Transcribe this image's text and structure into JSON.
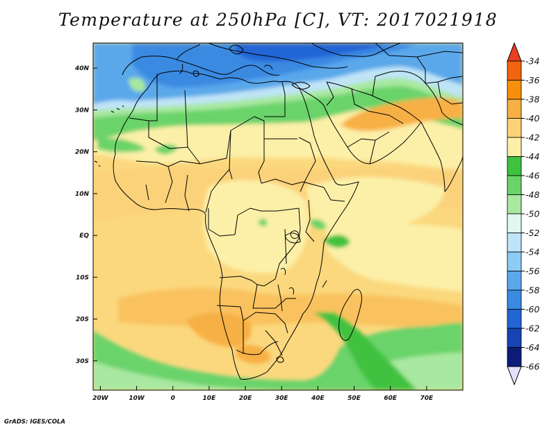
{
  "title": "Temperature at 250hPa [C], VT: 2017021918",
  "credit": "GrADS: IGES/COLA",
  "map": {
    "lon_range": [
      -22,
      80
    ],
    "lat_range": [
      -37,
      46
    ],
    "lon_ticks": [
      {
        "lon": -20,
        "label": "20W"
      },
      {
        "lon": -10,
        "label": "10W"
      },
      {
        "lon": 0,
        "label": "0"
      },
      {
        "lon": 10,
        "label": "10E"
      },
      {
        "lon": 20,
        "label": "20E"
      },
      {
        "lon": 30,
        "label": "30E"
      },
      {
        "lon": 40,
        "label": "40E"
      },
      {
        "lon": 50,
        "label": "50E"
      },
      {
        "lon": 60,
        "label": "60E"
      },
      {
        "lon": 70,
        "label": "70E"
      }
    ],
    "lat_ticks": [
      {
        "lat": 40,
        "label": "40N"
      },
      {
        "lat": 30,
        "label": "30N"
      },
      {
        "lat": 20,
        "label": "20N"
      },
      {
        "lat": 10,
        "label": "10N"
      },
      {
        "lat": 0,
        "label": "EQ"
      },
      {
        "lat": -10,
        "label": "10S"
      },
      {
        "lat": -20,
        "label": "20S"
      },
      {
        "lat": -30,
        "label": "30S"
      }
    ]
  },
  "colorbar": {
    "labels": [
      "-34",
      "-36",
      "-38",
      "-40",
      "-42",
      "-44",
      "-46",
      "-48",
      "-50",
      "-52",
      "-54",
      "-56",
      "-58",
      "-60",
      "-62",
      "-64",
      "-66"
    ],
    "top_arrow_color": "#e8401e",
    "bottom_arrow_color": "#e4e0f8",
    "colors": [
      "#f26310",
      "#f78f0c",
      "#f7b044",
      "#fbd27a",
      "#fcf0a8",
      "#3fc23f",
      "#6ad36a",
      "#a8e8a0",
      "#e0f8f0",
      "#bfe4f7",
      "#8ccbf3",
      "#5aa8ea",
      "#3a8ae2",
      "#2465d6",
      "#1744b2",
      "#0c1c78"
    ]
  }
}
